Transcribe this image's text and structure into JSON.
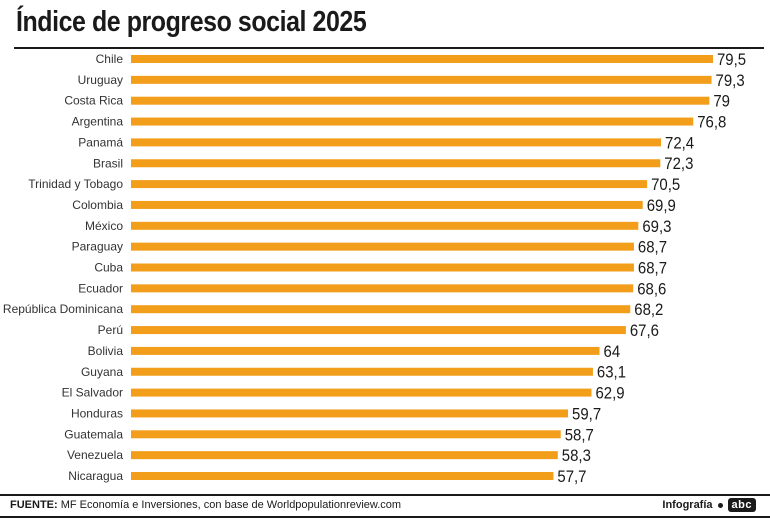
{
  "chart_data": {
    "type": "bar",
    "orientation": "horizontal",
    "title": "Índice de progreso social 2025",
    "xlabel": "",
    "ylabel": "",
    "xlim": [
      0,
      79.5
    ],
    "grid": false,
    "legend": "none",
    "categories": [
      "Chile",
      "Uruguay",
      "Costa Rica",
      "Argentina",
      "Panamá",
      "Brasil",
      "Trinidad y Tobago",
      "Colombia",
      "México",
      "Paraguay",
      "Cuba",
      "Ecuador",
      "República Dominicana",
      "Perú",
      "Bolivia",
      "Guyana",
      "El Salvador",
      "Honduras",
      "Guatemala",
      "Venezuela",
      "Nicaragua"
    ],
    "values": [
      79.5,
      79.3,
      79,
      76.8,
      72.4,
      72.3,
      70.5,
      69.9,
      69.3,
      68.7,
      68.7,
      68.6,
      68.2,
      67.6,
      64,
      63.1,
      62.9,
      59.7,
      58.7,
      58.3,
      57.7
    ],
    "value_labels": [
      "79,5",
      "79,3",
      "79",
      "76,8",
      "72,4",
      "72,3",
      "70,5",
      "69,9",
      "69,3",
      "68,7",
      "68,7",
      "68,6",
      "68,2",
      "67,6",
      "64",
      "63,1",
      "62,9",
      "59,7",
      "58,7",
      "58,3",
      "57,7"
    ],
    "bar_color": "#F29E1B"
  },
  "footer": {
    "source_label": "FUENTE:",
    "source_text": " MF Economía e Inversiones, con base de Worldpopulationreview.com",
    "credit": "Infografía",
    "logo": "abc"
  },
  "colors": {
    "bar": "#F29E1B",
    "text": "#1a1a1a"
  }
}
